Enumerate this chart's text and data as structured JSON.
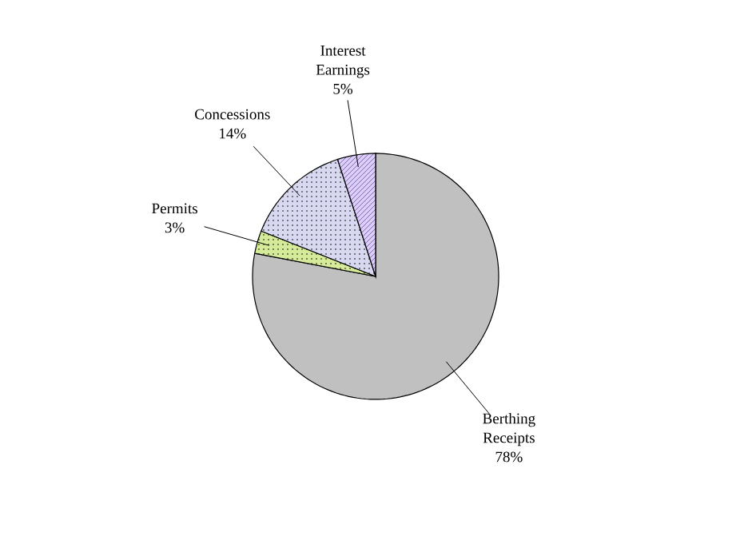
{
  "chart_data": {
    "type": "pie",
    "categories": [
      "Berthing Receipts",
      "Permits",
      "Concessions",
      "Interest Earnings"
    ],
    "values": [
      78,
      3,
      14,
      5
    ],
    "value_labels": [
      "78%",
      "3%",
      "14%",
      "5%"
    ],
    "colors": [
      "#c0c0c0",
      "#d6eb99",
      "#d8d8f0",
      "#ddccff"
    ]
  }
}
